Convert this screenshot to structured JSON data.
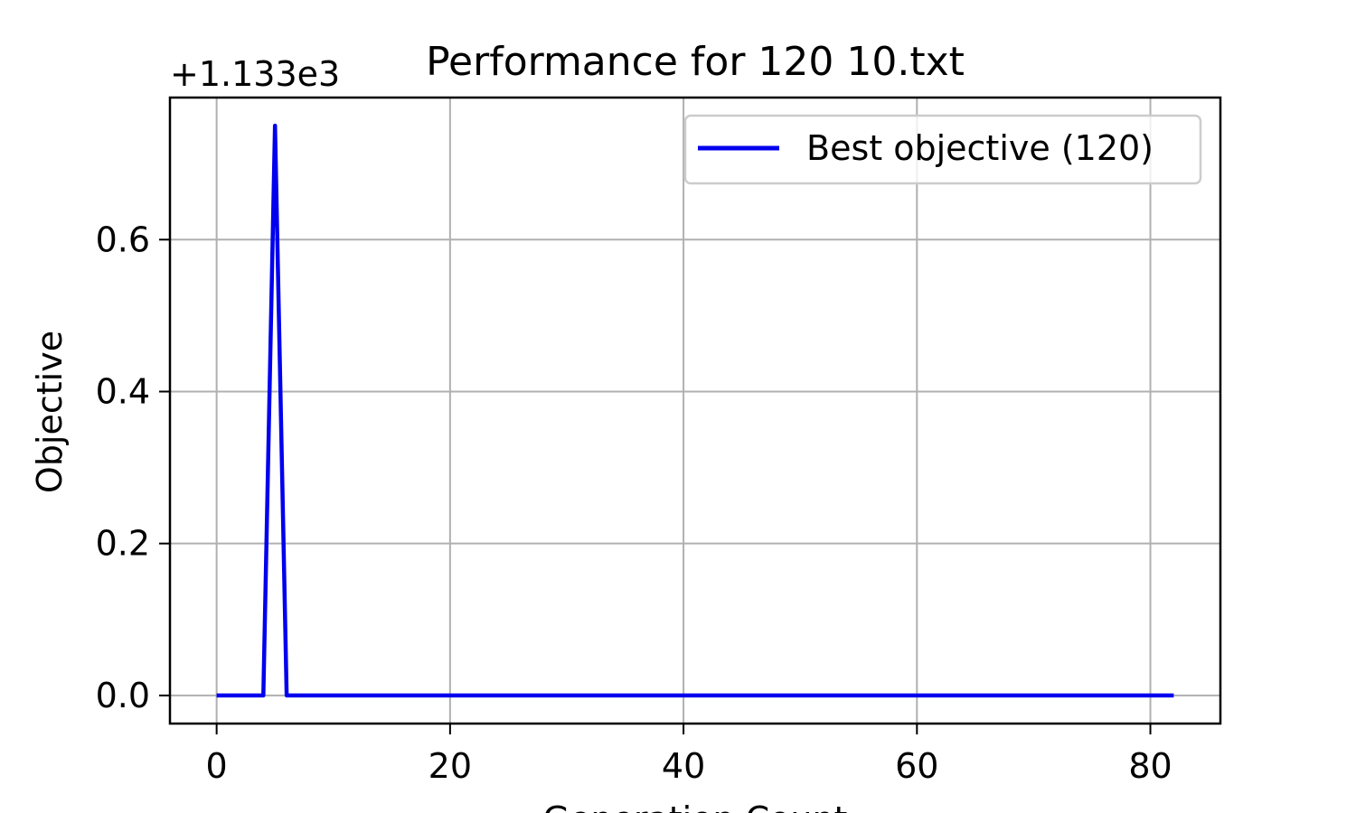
{
  "chart_data": {
    "type": "line",
    "title": "Performance for 120 10.txt",
    "xlabel": "Generation Count",
    "ylabel": "Objective",
    "offset_label": "+1.133e3",
    "xlim": [
      -4,
      86
    ],
    "ylim": [
      -0.037,
      0.787
    ],
    "x_ticks": [
      0,
      20,
      40,
      60,
      80
    ],
    "x_tick_labels": [
      "0",
      "20",
      "40",
      "60",
      "80"
    ],
    "y_ticks": [
      0.0,
      0.2,
      0.4,
      0.6
    ],
    "y_tick_labels": [
      "0.0",
      "0.2",
      "0.4",
      "0.6"
    ],
    "grid": true,
    "legend_position": "upper right",
    "series": [
      {
        "name": "Best objective (120)",
        "color": "#0000ee",
        "x": [
          0,
          4,
          5,
          6,
          82
        ],
        "y": [
          0.0,
          0.0,
          0.75,
          0.0,
          0.0
        ]
      }
    ]
  }
}
